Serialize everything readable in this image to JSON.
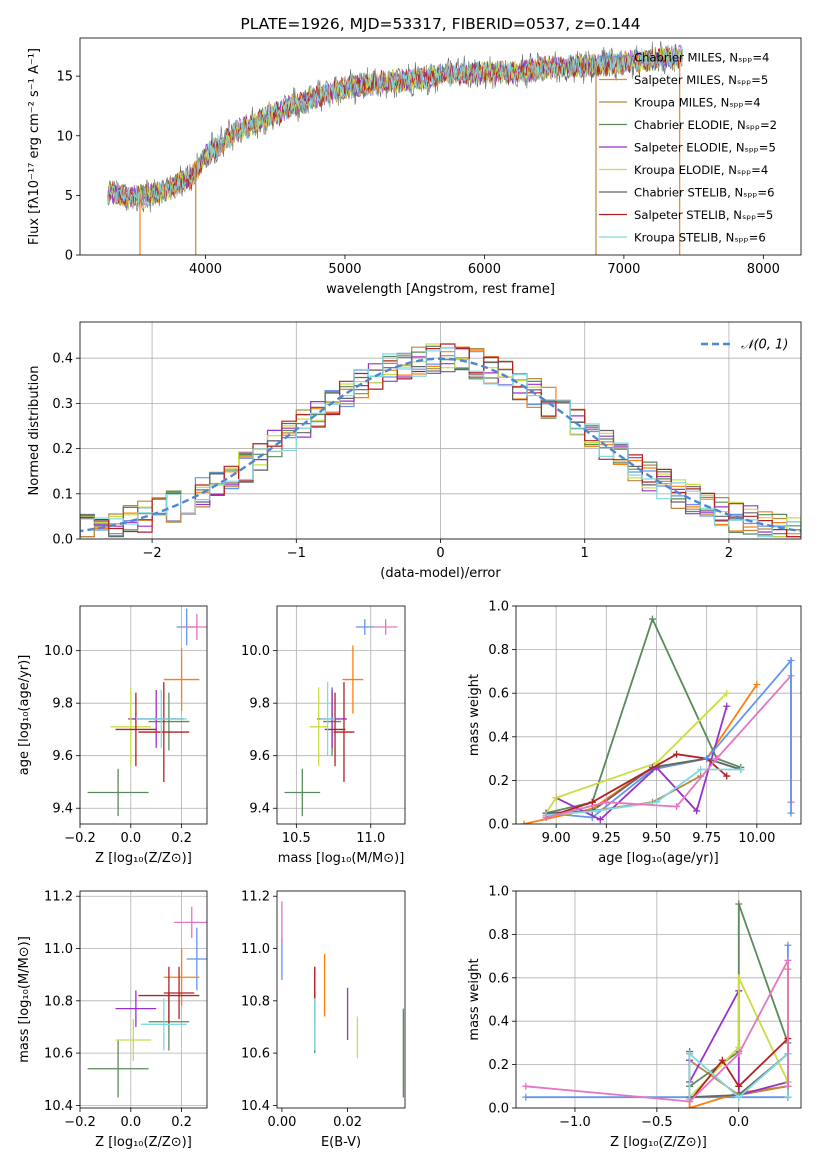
{
  "colors": [
    "#6495ed",
    "#ff7f0e",
    "#b5893f",
    "#5a8a5a",
    "#9932cc",
    "#ccdd44",
    "#666666",
    "#b22222",
    "#80d8e0"
  ],
  "pink": "#e377c2",
  "chart_data": [
    {
      "id": "spectrum",
      "type": "line",
      "title": "PLATE=1926, MJD=53317, FIBERID=0537, z=0.144",
      "xlabel": "wavelength [Angstrom, rest frame]",
      "ylabel": "Flux [fλ10⁻¹⁷ erg cm⁻² s⁻¹ A⁻¹]",
      "xlim": [
        3100,
        8270
      ],
      "ylim": [
        0,
        18.2
      ],
      "xticks": [
        4000,
        5000,
        6000,
        7000,
        8000
      ],
      "yticks": [
        0,
        5,
        10,
        15
      ],
      "grid": false,
      "legend_position": "top-right",
      "legend": [
        "Chabrier MILES, Nₛₚₚ=4",
        "Salpeter MILES, Nₛₚₚ=5",
        "Kroupa MILES, Nₛₚₚ=4",
        "Chabrier ELODIE, Nₛₚₚ=2",
        "Salpeter ELODIE, Nₛₚₚ=5",
        "Kroupa ELODIE, Nₛₚₚ=4",
        "Chabrier STELIB, Nₛₚₚ=6",
        "Salpeter STELIB, Nₛₚₚ=5",
        "Kroupa STELIB, Nₛₚₚ=6"
      ],
      "continuum": {
        "x": [
          3300,
          3450,
          3600,
          3750,
          3900,
          4000,
          4200,
          4400,
          4600,
          4800,
          5000,
          5200,
          5400,
          5600,
          5800,
          6000,
          6200,
          6400,
          6600,
          6800,
          7000,
          7200,
          7400
        ],
        "y": [
          5.4,
          4.8,
          5.0,
          5.6,
          6.5,
          8.3,
          10.2,
          11.3,
          12.4,
          13.3,
          14.0,
          14.4,
          14.6,
          14.9,
          15.2,
          15.3,
          15.3,
          15.6,
          15.8,
          15.9,
          16.1,
          16.4,
          16.6
        ]
      },
      "dips": [
        {
          "x": 3530,
          "y": 0
        },
        {
          "x": 3930,
          "y": 0
        },
        {
          "x": 6800,
          "y": 0
        },
        {
          "x": 7400,
          "y": 0
        }
      ]
    },
    {
      "id": "residuals",
      "type": "histogram",
      "xlabel": "(data-model)/error",
      "ylabel": "Normed distribution",
      "xlim": [
        -2.5,
        2.5
      ],
      "ylim": [
        0,
        0.48
      ],
      "xticks": [
        -2,
        -1,
        0,
        1,
        2
      ],
      "yticks": [
        0.0,
        0.1,
        0.2,
        0.3,
        0.4
      ],
      "grid": true,
      "legend_position": "top-right",
      "legend": [
        "𝒩(0, 1)"
      ],
      "bin_width": 0.1,
      "reference_curve": "normal(0,1) pdf"
    },
    {
      "id": "z-age",
      "type": "scatter",
      "xlabel": "Z [log₁₀(Z/Z⊙)]",
      "ylabel": "age  [log₁₀(age/yr)]",
      "xlim": [
        -0.2,
        0.3
      ],
      "ylim": [
        9.34,
        10.17
      ],
      "xticks": [
        -0.2,
        0.0,
        0.2
      ],
      "yticks": [
        9.4,
        9.6,
        9.8,
        10.0
      ],
      "grid": true,
      "points": [
        {
          "x": 0.22,
          "y": 10.09,
          "xerr": 0.04,
          "yerr": 0.07
        },
        {
          "x": 0.2,
          "y": 9.89,
          "xerr": 0.07,
          "yerr": 0.12
        },
        {
          "x": 0.15,
          "y": 9.73,
          "xerr": 0.08,
          "yerr": 0.11
        },
        {
          "x": -0.05,
          "y": 9.46,
          "xerr": 0.12,
          "yerr": 0.09
        },
        {
          "x": 0.1,
          "y": 9.74,
          "xerr": 0.11,
          "yerr": 0.11
        },
        {
          "x": 0.0,
          "y": 9.71,
          "xerr": 0.08,
          "yerr": 0.15
        },
        {
          "x": 0.02,
          "y": 9.7,
          "xerr": 0.08,
          "yerr": 0.14
        },
        {
          "x": 0.13,
          "y": 9.69,
          "xerr": 0.1,
          "yerr": 0.19
        },
        {
          "x": 0.12,
          "y": 9.74,
          "xerr": 0.1,
          "yerr": 0.11
        },
        {
          "x": 0.26,
          "y": 10.09,
          "xerr": 0.05,
          "yerr": 0.05
        }
      ]
    },
    {
      "id": "mass-age",
      "type": "scatter",
      "xlabel": "mass [log₁₀(M/M⊙)]",
      "ylabel": "",
      "xlim": [
        10.37,
        11.23
      ],
      "ylim": [
        9.34,
        10.17
      ],
      "xticks": [
        10.5,
        11.0
      ],
      "yticks": [
        9.4,
        9.6,
        9.8,
        10.0
      ],
      "grid": true,
      "points": [
        {
          "x": 10.96,
          "y": 10.09,
          "xerr": 0.06,
          "yerr": 0.03
        },
        {
          "x": 10.88,
          "y": 9.89,
          "xerr": 0.07,
          "yerr": 0.13
        },
        {
          "x": 10.74,
          "y": 9.73,
          "xerr": 0.06,
          "yerr": 0.13
        },
        {
          "x": 10.54,
          "y": 9.46,
          "xerr": 0.12,
          "yerr": 0.09
        },
        {
          "x": 10.74,
          "y": 9.74,
          "xerr": 0.1,
          "yerr": 0.11
        },
        {
          "x": 10.65,
          "y": 9.71,
          "xerr": 0.06,
          "yerr": 0.15
        },
        {
          "x": 10.76,
          "y": 9.7,
          "xerr": 0.07,
          "yerr": 0.14
        },
        {
          "x": 10.82,
          "y": 9.69,
          "xerr": 0.07,
          "yerr": 0.19
        },
        {
          "x": 10.71,
          "y": 9.74,
          "xerr": 0.05,
          "yerr": 0.14
        },
        {
          "x": 11.1,
          "y": 10.09,
          "xerr": 0.08,
          "yerr": 0.03
        }
      ]
    },
    {
      "id": "age-weight",
      "type": "line",
      "xlabel": "age  [log₁₀(age/yr)]",
      "ylabel": "mass weight",
      "xlim": [
        8.8,
        10.22
      ],
      "ylim": [
        0,
        1
      ],
      "xticks": [
        9.0,
        9.25,
        9.5,
        9.75,
        10.0
      ],
      "yticks": [
        0.0,
        0.2,
        0.4,
        0.6,
        0.8,
        1.0
      ],
      "grid": true,
      "series": [
        {
          "x": [
            8.95,
            9.18,
            9.48,
            9.75,
            9.92
          ],
          "y": [
            0.05,
            0.03,
            0.25,
            0.3,
            0.25
          ]
        },
        {
          "x": [
            8.84,
            9.18,
            9.48,
            9.75,
            10.0
          ],
          "y": [
            0.0,
            0.07,
            0.26,
            0.3,
            0.64
          ]
        },
        {
          "x": [
            8.95,
            9.18,
            9.48,
            9.72
          ],
          "y": [
            0.04,
            0.06,
            0.1,
            0.22
          ]
        },
        {
          "x": [
            8.95,
            9.18,
            9.48,
            9.8,
            9.92
          ],
          "y": [
            0.05,
            0.1,
            0.94,
            0.3,
            0.26
          ]
        },
        {
          "x": [
            9.0,
            9.22,
            9.5,
            9.7,
            9.85
          ],
          "y": [
            0.12,
            0.02,
            0.26,
            0.06,
            0.54
          ]
        },
        {
          "x": [
            8.95,
            9.0,
            9.5,
            9.85
          ],
          "y": [
            0.05,
            0.12,
            0.28,
            0.6
          ]
        },
        {
          "x": [
            8.95,
            9.18,
            9.48,
            9.75,
            9.92
          ],
          "y": [
            0.05,
            0.06,
            0.26,
            0.3,
            0.25
          ]
        },
        {
          "x": [
            8.95,
            9.18,
            9.6,
            9.75,
            9.85
          ],
          "y": [
            0.03,
            0.1,
            0.32,
            0.3,
            0.22
          ]
        },
        {
          "x": [
            8.95,
            9.2,
            9.5,
            9.72,
            9.92
          ],
          "y": [
            0.04,
            0.06,
            0.1,
            0.25,
            0.25
          ]
        },
        {
          "x": [
            8.95,
            9.25,
            9.6,
            9.8,
            10.17,
            10.17
          ],
          "y": [
            0.03,
            0.1,
            0.08,
            0.3,
            0.68,
            0.1
          ]
        },
        {
          "x": [
            10.17,
            10.17,
            9.75
          ],
          "y": [
            0.05,
            0.75,
            0.3
          ]
        }
      ]
    },
    {
      "id": "z-mass",
      "type": "scatter",
      "xlabel": "Z [log₁₀(Z/Z⊙)]",
      "ylabel": "mass [log₁₀(M/M⊙)]",
      "xlim": [
        -0.2,
        0.3
      ],
      "ylim": [
        10.39,
        11.22
      ],
      "xticks": [
        -0.2,
        0.0,
        0.2
      ],
      "yticks": [
        10.4,
        10.6,
        10.8,
        11.0,
        11.2
      ],
      "grid": true,
      "points": [
        {
          "x": 0.26,
          "y": 10.96,
          "xerr": 0.04,
          "yerr": 0.12
        },
        {
          "x": 0.2,
          "y": 10.89,
          "xerr": 0.07,
          "yerr": 0.11
        },
        {
          "x": 0.15,
          "y": 10.72,
          "xerr": 0.08,
          "yerr": 0.11
        },
        {
          "x": -0.05,
          "y": 10.54,
          "xerr": 0.12,
          "yerr": 0.11
        },
        {
          "x": 0.02,
          "y": 10.77,
          "xerr": 0.08,
          "yerr": 0.07
        },
        {
          "x": 0.01,
          "y": 10.65,
          "xerr": 0.07,
          "yerr": 0.08
        },
        {
          "x": 0.15,
          "y": 10.82,
          "xerr": 0.12,
          "yerr": 0.11
        },
        {
          "x": 0.19,
          "y": 10.83,
          "xerr": 0.06,
          "yerr": 0.1
        },
        {
          "x": 0.13,
          "y": 10.71,
          "xerr": 0.09,
          "yerr": 0.1
        },
        {
          "x": 0.24,
          "y": 11.1,
          "xerr": 0.07,
          "yerr": 0.06
        }
      ]
    },
    {
      "id": "ebv-mass",
      "type": "scatter",
      "xlabel": "E(B-V)",
      "ylabel": "",
      "xlim": [
        -0.0015,
        0.0375
      ],
      "ylim": [
        10.39,
        11.22
      ],
      "xticks": [
        0.0,
        0.02
      ],
      "yticks": [
        10.4,
        10.6,
        10.8,
        11.0,
        11.2
      ],
      "grid": false,
      "points": [
        {
          "x": 0.0,
          "y": 10.96,
          "yerr": 0.08
        },
        {
          "x": 0.013,
          "y": 10.86,
          "yerr": 0.12
        },
        {
          "x": 0.01,
          "y": 10.71,
          "yerr": 0.11
        },
        {
          "x": 0.037,
          "y": 10.6,
          "yerr": 0.17
        },
        {
          "x": 0.02,
          "y": 10.75,
          "yerr": 0.1
        },
        {
          "x": 0.023,
          "y": 10.66,
          "yerr": 0.08
        },
        {
          "x": 0.01,
          "y": 10.82,
          "yerr": 0.11
        },
        {
          "x": 0.01,
          "y": 10.83,
          "yerr": 0.1
        },
        {
          "x": 0.01,
          "y": 10.71,
          "yerr": 0.1
        },
        {
          "x": 0.0,
          "y": 11.1,
          "yerr": 0.08
        }
      ]
    },
    {
      "id": "z-weight",
      "type": "line",
      "xlabel": "Z [log₁₀(Z/Z⊙)]",
      "ylabel": "mass weight",
      "xlim": [
        -1.36,
        0.38
      ],
      "ylim": [
        0,
        1
      ],
      "xticks": [
        -1.0,
        -0.5,
        0.0
      ],
      "yticks": [
        0.0,
        0.2,
        0.4,
        0.6,
        0.8,
        1.0
      ],
      "grid": true,
      "series": [
        {
          "x": [
            -1.3,
            -0.3,
            0.0,
            0.3,
            0.3
          ],
          "y": [
            0.05,
            0.05,
            0.05,
            0.05,
            0.75
          ]
        },
        {
          "x": [
            -0.3,
            -0.3,
            0.0,
            0.3,
            0.3
          ],
          "y": [
            0.25,
            0.0,
            0.07,
            0.1,
            0.64
          ]
        },
        {
          "x": [
            -0.3,
            -0.3,
            0.0,
            0.3
          ],
          "y": [
            0.04,
            0.22,
            0.06,
            0.1
          ]
        },
        {
          "x": [
            -0.3,
            -0.3,
            0.0,
            0.0,
            0.3,
            0.3
          ],
          "y": [
            0.25,
            0.1,
            0.26,
            0.94,
            0.3,
            0.05
          ]
        },
        {
          "x": [
            -0.3,
            -0.3,
            0.0,
            0.0,
            0.3
          ],
          "y": [
            0.22,
            0.12,
            0.54,
            0.06,
            0.12
          ]
        },
        {
          "x": [
            -0.3,
            0.0,
            0.0,
            0.3,
            0.3
          ],
          "y": [
            0.05,
            0.28,
            0.6,
            0.12,
            0.05
          ]
        },
        {
          "x": [
            -0.3,
            -0.3,
            0.0,
            0.3,
            0.3
          ],
          "y": [
            0.26,
            0.05,
            0.06,
            0.25,
            0.05
          ]
        },
        {
          "x": [
            -0.3,
            -0.1,
            0.0,
            0.3,
            0.3
          ],
          "y": [
            0.03,
            0.22,
            0.1,
            0.32,
            0.1
          ]
        },
        {
          "x": [
            -0.3,
            -0.3,
            0.0,
            0.3,
            0.3
          ],
          "y": [
            0.04,
            0.25,
            0.05,
            0.25,
            0.05
          ]
        },
        {
          "x": [
            -1.3,
            -0.3,
            0.0,
            0.3,
            0.3
          ],
          "y": [
            0.1,
            0.03,
            0.25,
            0.68,
            0.1
          ]
        }
      ]
    }
  ]
}
